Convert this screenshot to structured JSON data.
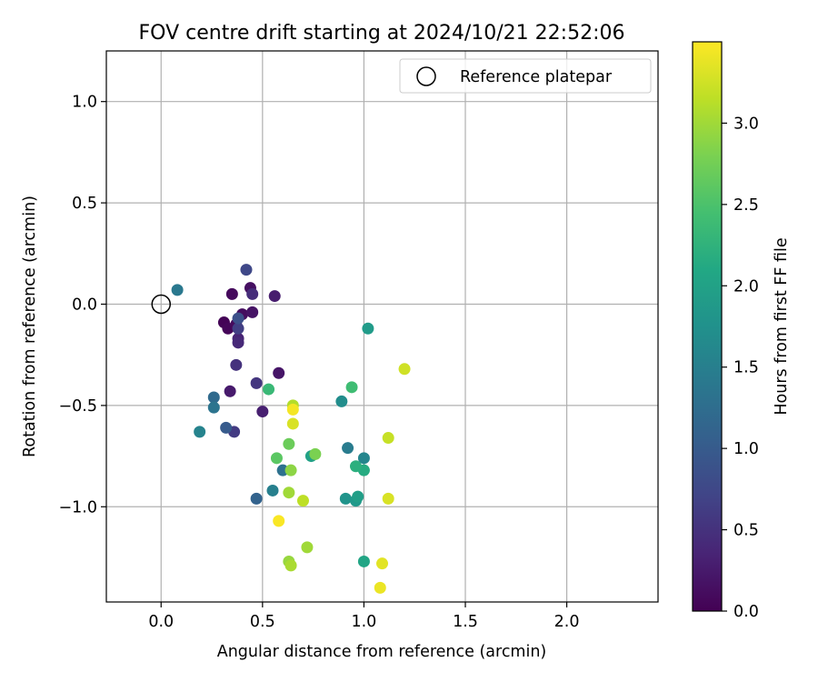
{
  "chart_data": {
    "type": "scatter",
    "title": "FOV centre drift starting at 2024/10/21 22:52:06",
    "xlabel": "Angular distance from reference (arcmin)",
    "ylabel": "Rotation from reference (arcmin)",
    "colorbar_label": "Hours from first FF file",
    "xlim": [
      -0.27,
      2.45
    ],
    "ylim": [
      -1.47,
      1.25
    ],
    "x_ticks": [
      0.0,
      0.5,
      1.0,
      1.5,
      2.0
    ],
    "x_tick_labels": [
      "0.0",
      "0.5",
      "1.0",
      "1.5",
      "2.0"
    ],
    "y_ticks": [
      -1.0,
      -0.5,
      0.0,
      0.5,
      1.0
    ],
    "y_tick_labels": [
      "−1.0",
      "−0.5",
      "0.0",
      "0.5",
      "1.0"
    ],
    "colorbar_range": [
      0.0,
      3.5
    ],
    "colorbar_ticks": [
      0.0,
      0.5,
      1.0,
      1.5,
      2.0,
      2.5,
      3.0
    ],
    "colorbar_tick_labels": [
      "0.0",
      "0.5",
      "1.0",
      "1.5",
      "2.0",
      "2.5",
      "3.0"
    ],
    "colormap": "viridis",
    "grid": true,
    "legend": {
      "position": "top-right",
      "entries": [
        "Reference platepar"
      ]
    },
    "reference_point": {
      "x": 0.0,
      "y": 0.0
    },
    "points": [
      {
        "x": 0.31,
        "y": -0.09,
        "t": 0.02
      },
      {
        "x": 0.33,
        "y": -0.12,
        "t": 0.05
      },
      {
        "x": 0.35,
        "y": 0.05,
        "t": 0.08
      },
      {
        "x": 0.37,
        "y": -0.1,
        "t": 0.1
      },
      {
        "x": 0.4,
        "y": -0.05,
        "t": 0.12
      },
      {
        "x": 0.44,
        "y": 0.08,
        "t": 0.15
      },
      {
        "x": 0.45,
        "y": -0.04,
        "t": 0.18
      },
      {
        "x": 0.58,
        "y": -0.34,
        "t": 0.2
      },
      {
        "x": 0.34,
        "y": -0.43,
        "t": 0.25
      },
      {
        "x": 0.56,
        "y": 0.04,
        "t": 0.28
      },
      {
        "x": 0.5,
        "y": -0.53,
        "t": 0.3
      },
      {
        "x": 0.38,
        "y": -0.17,
        "t": 0.35
      },
      {
        "x": 0.38,
        "y": -0.19,
        "t": 0.4
      },
      {
        "x": 0.45,
        "y": 0.05,
        "t": 0.45
      },
      {
        "x": 0.37,
        "y": -0.3,
        "t": 0.5
      },
      {
        "x": 0.47,
        "y": -0.39,
        "t": 0.55
      },
      {
        "x": 0.36,
        "y": -0.63,
        "t": 0.6
      },
      {
        "x": 0.38,
        "y": -0.12,
        "t": 0.65
      },
      {
        "x": 0.42,
        "y": 0.17,
        "t": 0.75
      },
      {
        "x": 0.38,
        "y": -0.07,
        "t": 0.85
      },
      {
        "x": 0.32,
        "y": -0.61,
        "t": 1.0
      },
      {
        "x": 0.47,
        "y": -0.96,
        "t": 1.1
      },
      {
        "x": 0.26,
        "y": -0.46,
        "t": 1.2
      },
      {
        "x": 0.6,
        "y": -0.82,
        "t": 1.3
      },
      {
        "x": 0.26,
        "y": -0.51,
        "t": 1.35
      },
      {
        "x": 0.08,
        "y": 0.07,
        "t": 1.4
      },
      {
        "x": 0.92,
        "y": -0.71,
        "t": 1.45
      },
      {
        "x": 0.55,
        "y": -0.92,
        "t": 1.5
      },
      {
        "x": 0.19,
        "y": -0.63,
        "t": 1.55
      },
      {
        "x": 1.0,
        "y": -0.76,
        "t": 1.6
      },
      {
        "x": 0.89,
        "y": -0.48,
        "t": 1.7
      },
      {
        "x": 0.91,
        "y": -0.96,
        "t": 1.8
      },
      {
        "x": 0.96,
        "y": -0.97,
        "t": 1.85
      },
      {
        "x": 1.02,
        "y": -0.12,
        "t": 1.9
      },
      {
        "x": 0.97,
        "y": -0.95,
        "t": 1.95
      },
      {
        "x": 0.74,
        "y": -0.75,
        "t": 2.0
      },
      {
        "x": 1.0,
        "y": -1.27,
        "t": 2.05
      },
      {
        "x": 1.0,
        "y": -0.82,
        "t": 2.15
      },
      {
        "x": 0.96,
        "y": -0.8,
        "t": 2.2
      },
      {
        "x": 0.53,
        "y": -0.42,
        "t": 2.35
      },
      {
        "x": 0.94,
        "y": -0.41,
        "t": 2.4
      },
      {
        "x": 0.57,
        "y": -0.76,
        "t": 2.6
      },
      {
        "x": 0.63,
        "y": -0.69,
        "t": 2.7
      },
      {
        "x": 0.76,
        "y": -0.74,
        "t": 2.8
      },
      {
        "x": 0.64,
        "y": -0.82,
        "t": 2.9
      },
      {
        "x": 0.63,
        "y": -1.27,
        "t": 2.95
      },
      {
        "x": 0.63,
        "y": -0.93,
        "t": 3.0
      },
      {
        "x": 0.72,
        "y": -1.2,
        "t": 3.0
      },
      {
        "x": 0.64,
        "y": -1.29,
        "t": 3.05
      },
      {
        "x": 0.65,
        "y": -0.5,
        "t": 3.1
      },
      {
        "x": 0.7,
        "y": -0.97,
        "t": 3.15
      },
      {
        "x": 1.12,
        "y": -0.66,
        "t": 3.2
      },
      {
        "x": 1.2,
        "y": -0.32,
        "t": 3.25
      },
      {
        "x": 1.12,
        "y": -0.96,
        "t": 3.3
      },
      {
        "x": 0.65,
        "y": -0.59,
        "t": 3.3
      },
      {
        "x": 1.09,
        "y": -1.28,
        "t": 3.35
      },
      {
        "x": 1.08,
        "y": -1.4,
        "t": 3.4
      },
      {
        "x": 0.65,
        "y": -0.52,
        "t": 3.45
      },
      {
        "x": 0.58,
        "y": -1.07,
        "t": 3.48
      }
    ]
  }
}
